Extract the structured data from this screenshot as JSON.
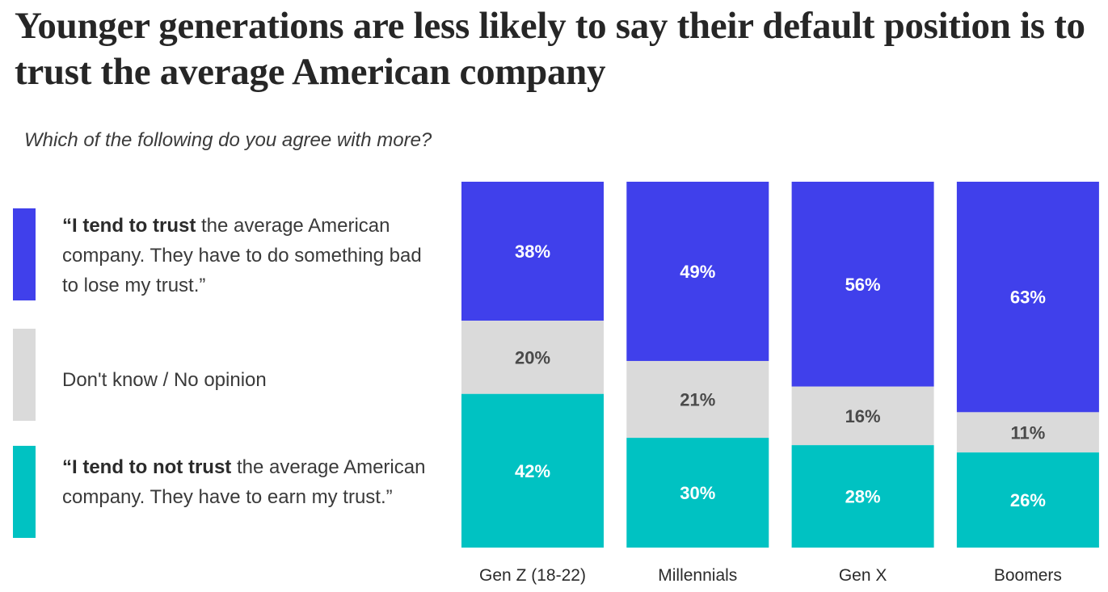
{
  "title": "Younger generations are less likely to say their default position is to trust the average American company",
  "subtitle": "Which of the following do you agree with more?",
  "legend": [
    {
      "name": "trust",
      "bold": "“I tend to trust",
      "rest": " the average American company. They have to do something bad to lose my trust.”",
      "color": "#4040eb"
    },
    {
      "name": "dont-know",
      "bold": "",
      "rest": "Don't know / No opinion",
      "color": "#dadada"
    },
    {
      "name": "not-trust",
      "bold": "“I tend to not trust",
      "rest": " the average American company. They have to earn my trust.”",
      "color": "#00c2c2"
    }
  ],
  "chart_data": {
    "type": "bar",
    "stacked": true,
    "categories": [
      "Gen Z (18-22)",
      "Millennials",
      "Gen X",
      "Boomers"
    ],
    "series": [
      {
        "name": "I tend to trust",
        "color": "#4040eb",
        "label_color": "#ffffff",
        "values": [
          38,
          49,
          56,
          63
        ],
        "labels": [
          "38%",
          "49%",
          "56%",
          "63%"
        ]
      },
      {
        "name": "Don't know / No opinion",
        "color": "#dadada",
        "label_color": "#4a4a4a",
        "values": [
          20,
          21,
          16,
          11
        ],
        "labels": [
          "20%",
          "21%",
          "16%",
          "11%"
        ]
      },
      {
        "name": "I tend to not trust",
        "color": "#00c2c2",
        "label_color": "#ffffff",
        "values": [
          42,
          30,
          28,
          26
        ],
        "labels": [
          "42%",
          "30%",
          "28%",
          "26%"
        ]
      }
    ],
    "ylim": [
      0,
      100
    ],
    "title": "Younger generations are less likely to say their default position is to trust the average American company",
    "xlabel": "",
    "ylabel": ""
  }
}
